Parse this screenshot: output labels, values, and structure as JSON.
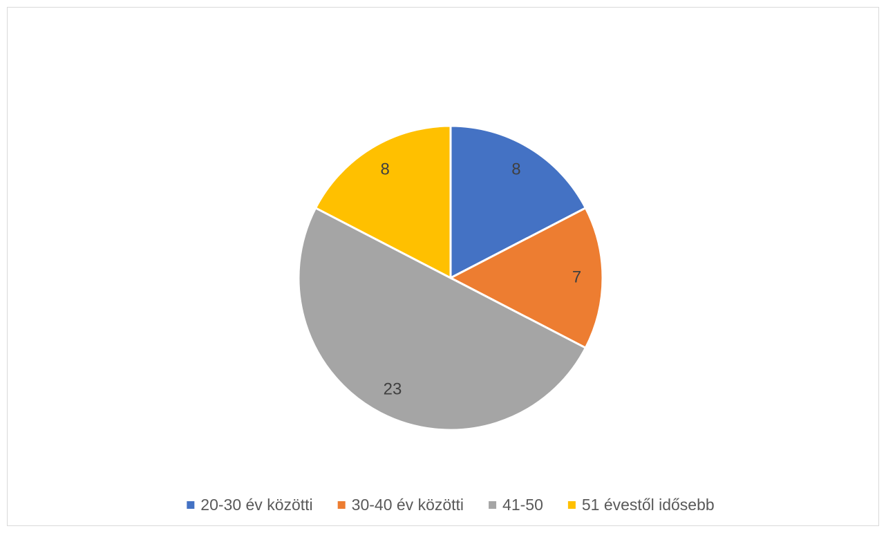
{
  "chart_data": {
    "type": "pie",
    "categories": [
      "20-30 év közötti",
      "30-40 év közötti",
      "41-50",
      "51 évestől idősebb"
    ],
    "values": [
      8,
      7,
      23,
      8
    ],
    "colors": [
      "#4472c4",
      "#ed7d31",
      "#a5a5a5",
      "#ffc000"
    ],
    "legend": "bottom"
  }
}
